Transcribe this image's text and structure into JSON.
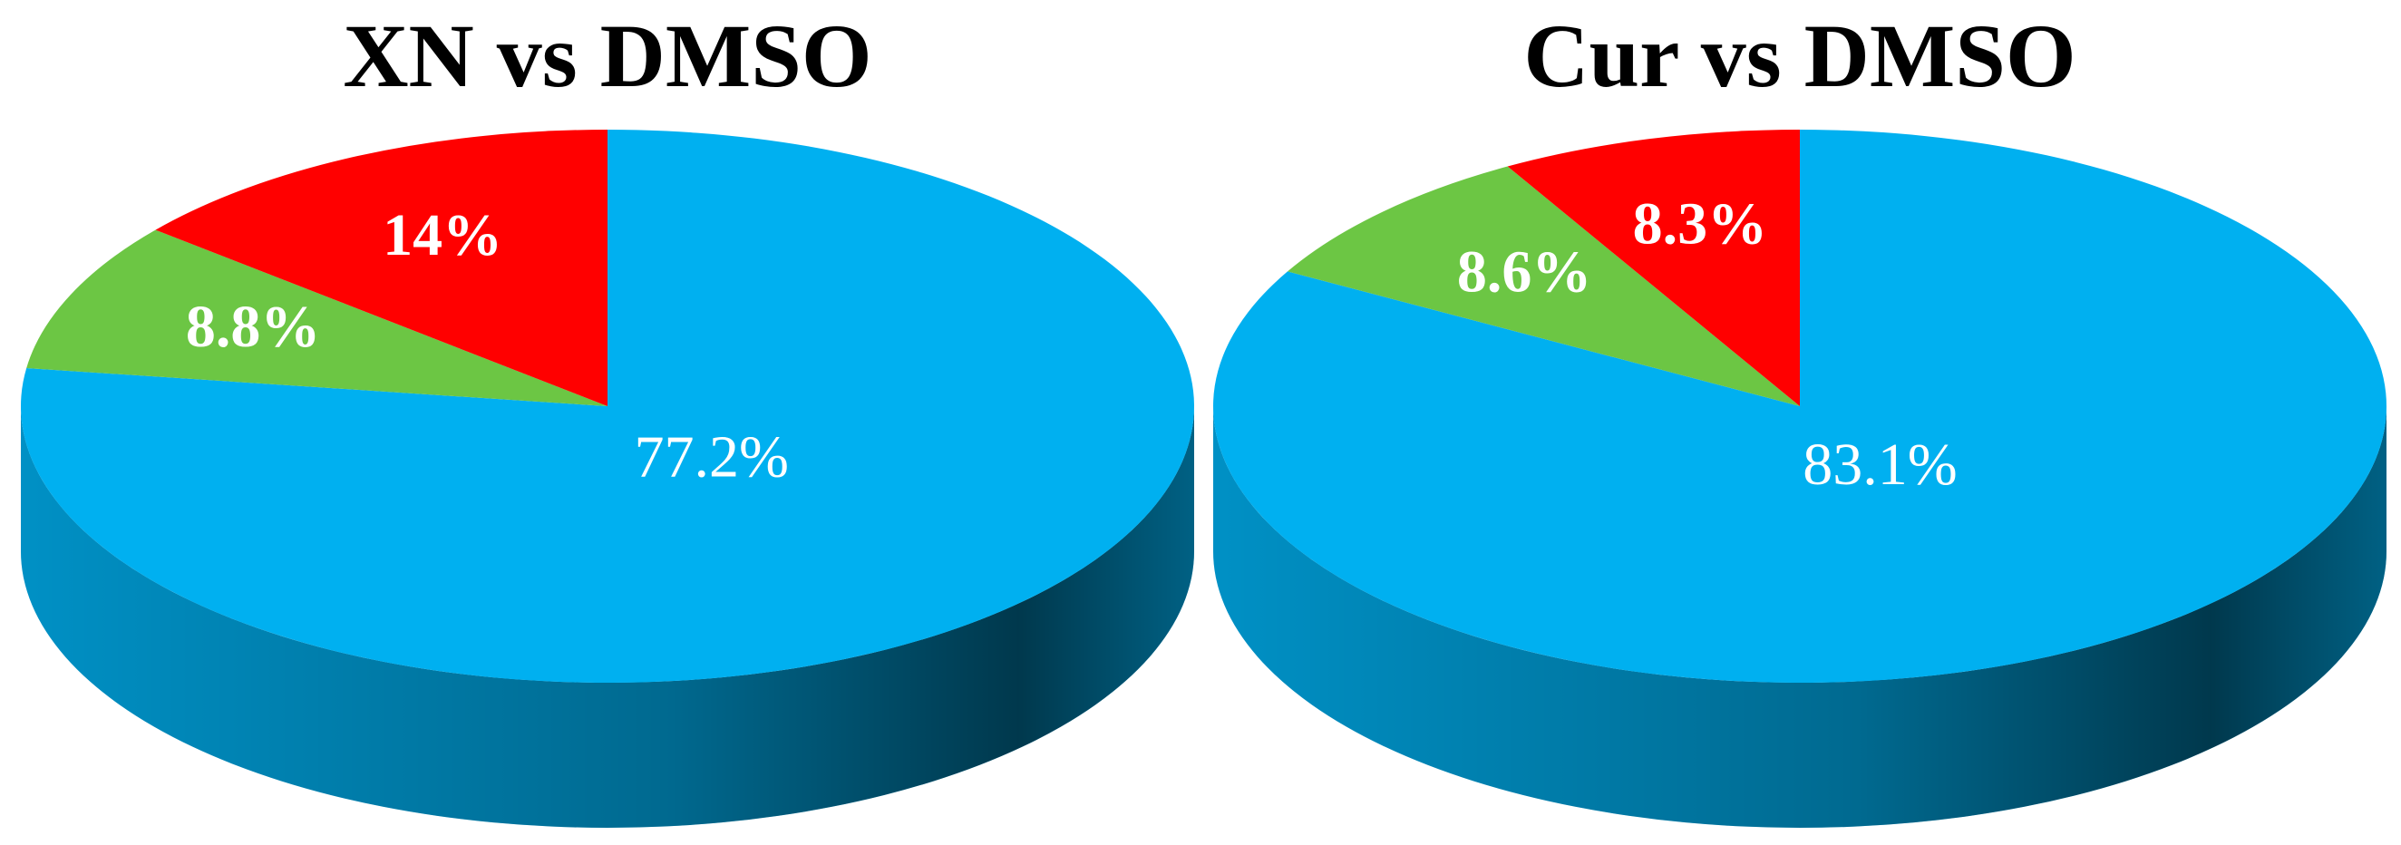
{
  "chart_data": [
    {
      "type": "pie",
      "title": "XN vs DMSO",
      "values": [
        77.2,
        8.8,
        14
      ],
      "value_labels": [
        "77.2%",
        "8.8%",
        "14%"
      ],
      "colors": [
        "#00b0f0",
        "#6cc644",
        "#ff0000"
      ]
    },
    {
      "type": "pie",
      "title": "Cur vs DMSO",
      "values": [
        83.1,
        8.6,
        8.3
      ],
      "value_labels": [
        "83.1%",
        "8.6%",
        "8.3%"
      ],
      "colors": [
        "#00b0f0",
        "#6cc644",
        "#ff0000"
      ]
    }
  ]
}
